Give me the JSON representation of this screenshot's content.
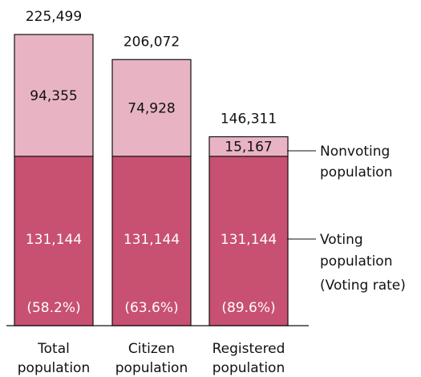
{
  "chart_data": {
    "type": "bar",
    "stacked": true,
    "categories": [
      [
        "Total",
        "population"
      ],
      [
        "Citizen",
        "population"
      ],
      [
        "Registered",
        "population"
      ]
    ],
    "totals": [
      "225,499",
      "206,072",
      "146,311"
    ],
    "series": [
      {
        "name": "Voting population",
        "values": [
          131144,
          131144,
          131144
        ],
        "labels": [
          "131,144",
          "131,144",
          "131,144"
        ],
        "rates": [
          "(58.2%)",
          "(63.6%)",
          "(89.6%)"
        ],
        "color": "#c85070"
      },
      {
        "name": "Nonvoting population",
        "values": [
          94355,
          74928,
          15167
        ],
        "labels": [
          "94,355",
          "74,928",
          "15,167"
        ],
        "color": "#e8b4c4"
      }
    ],
    "ylim": [
      0,
      225499
    ],
    "grid": false,
    "legend": {
      "placement": "right",
      "nonvoting": [
        "Nonvoting",
        "population"
      ],
      "voting": [
        "Voting",
        "population",
        "(Voting rate)"
      ]
    },
    "colors": {
      "border": "#111111"
    }
  }
}
